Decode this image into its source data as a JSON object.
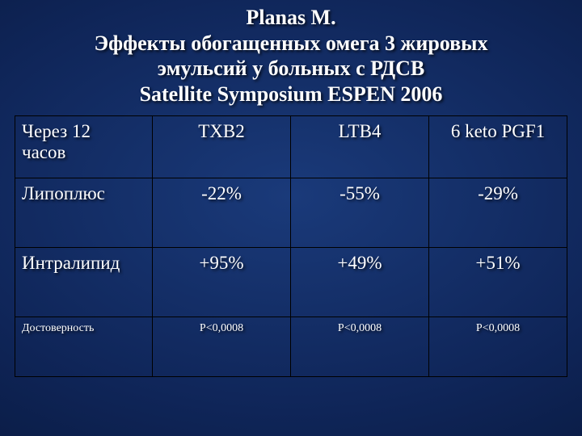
{
  "title_lines": {
    "l1": "Planas M.",
    "l2": "Эффекты обогащенных омега 3 жировых",
    "l3": "эмульсий у больных с РДСВ",
    "l4": "Satellite Symposium ESPEN 2006"
  },
  "table": {
    "header": {
      "row_label_line1": "Через 12",
      "row_label_line2": "часов",
      "c1": "TXB2",
      "c2": "LTB4",
      "c3": "6 keto PGF1"
    },
    "rows": [
      {
        "label": "Липоплюс",
        "c1": "-22%",
        "c2": "-55%",
        "c3": "-29%"
      },
      {
        "label": "Интралипид",
        "c1": "+95%",
        "c2": "+49%",
        "c3": "+51%"
      }
    ],
    "significance": {
      "label": "Достоверность",
      "c1": "P<0,0008",
      "c2": "P<0,0008",
      "c3": "P<0,0008"
    }
  },
  "style": {
    "title_fontsize": 26,
    "body_fontsize": 23,
    "sig_fontsize": 14,
    "text_color": "#ffffff",
    "border_color": "#000000",
    "bg_center": "#1a3a7a",
    "bg_outer": "#071638"
  }
}
